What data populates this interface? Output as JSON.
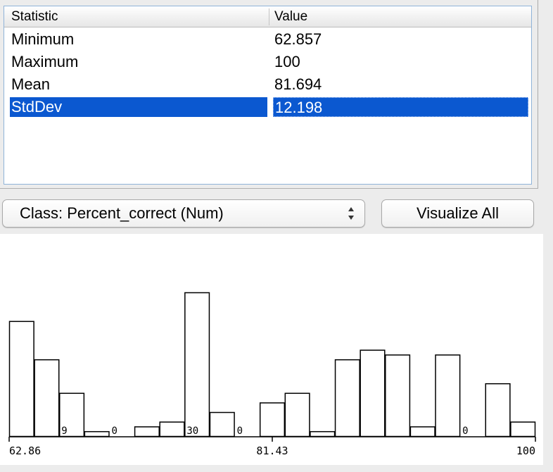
{
  "stats": {
    "headers": {
      "statistic": "Statistic",
      "value": "Value"
    },
    "rows": [
      {
        "label": "Minimum",
        "value": "62.857"
      },
      {
        "label": "Maximum",
        "value": "100"
      },
      {
        "label": "Mean",
        "value": "81.694"
      },
      {
        "label": "StdDev",
        "value": "12.198"
      }
    ],
    "selected_row": "StdDev",
    "selection_color": "#0b58d0"
  },
  "controls": {
    "class_select": "Class: Percent_correct (Num)",
    "visualize_all": "Visualize All"
  },
  "chart_data": {
    "type": "bar",
    "title": "",
    "x_tick_labels": [
      "62.86",
      "81.43",
      "100"
    ],
    "xlim": [
      62.86,
      100
    ],
    "bar_counts": [
      24,
      16,
      9,
      1,
      0,
      2,
      3,
      30,
      5,
      0,
      7,
      9,
      1,
      16,
      18,
      17,
      2,
      17,
      0,
      11,
      3
    ],
    "bar_labels": [
      "",
      "",
      "9",
      "",
      "0",
      "",
      "",
      "30",
      "",
      "0",
      "",
      "",
      "",
      "",
      "",
      "",
      "",
      "",
      "0",
      "",
      ""
    ],
    "note": "Count labels shown only on low bars; bar values estimated from relative heights"
  }
}
